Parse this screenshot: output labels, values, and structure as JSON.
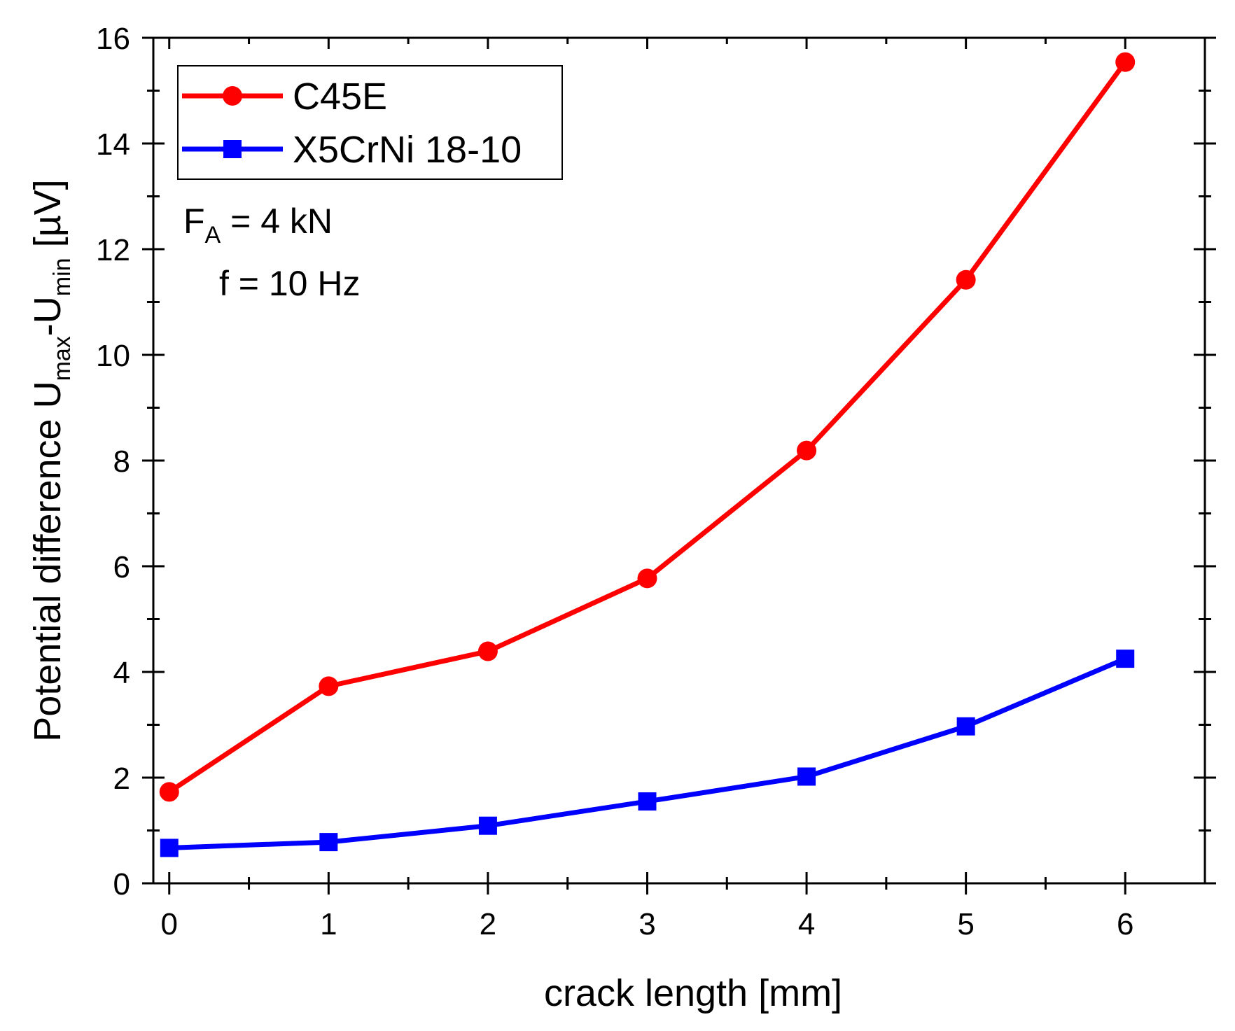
{
  "chart_data": {
    "type": "line",
    "title": "",
    "xlabel": "crack length [mm]",
    "ylabel": {
      "main": "Potential difference U",
      "sub1": "max",
      "mid": "-U",
      "sub2": "min",
      "unit": " [µV]"
    },
    "xlim": [
      -0.1,
      6.5
    ],
    "ylim": [
      0,
      16
    ],
    "x_ticks": [
      0,
      1,
      2,
      3,
      4,
      5,
      6
    ],
    "y_ticks": [
      0,
      2,
      4,
      6,
      8,
      10,
      12,
      14,
      16
    ],
    "grid": false,
    "legend_position": "top-left",
    "x": [
      0,
      1,
      2,
      3,
      4,
      5,
      6
    ],
    "series": [
      {
        "name": "C45E",
        "color": "#ff0000",
        "marker": "circle",
        "values": [
          1.73,
          3.73,
          4.39,
          5.77,
          8.19,
          11.42,
          15.54
        ]
      },
      {
        "name": "X5CrNi 18-10",
        "color": "#0000ff",
        "marker": "square",
        "values": [
          0.67,
          0.78,
          1.09,
          1.55,
          2.02,
          2.97,
          4.25
        ]
      }
    ],
    "annotations": {
      "force_prefix": "F",
      "force_sub": "A",
      "force_suffix": " = 4 kN",
      "frequency": "f = 10 Hz"
    }
  }
}
